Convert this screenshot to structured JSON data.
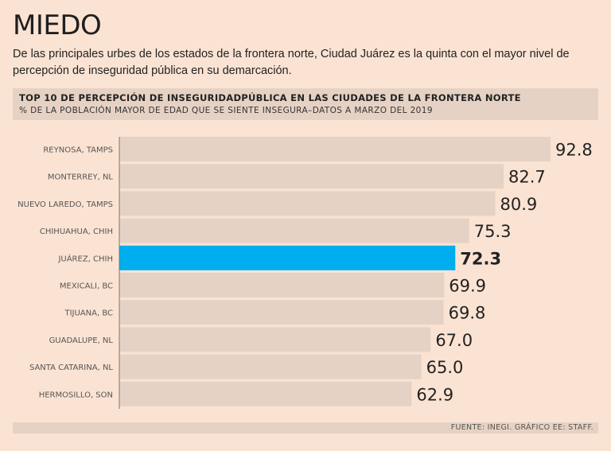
{
  "header": {
    "title": "MIEDO",
    "subtitle": "De las principales urbes de los estados de la frontera norte, Ciudad Juárez es la quinta con el mayor nivel de percepción de inseguridad pública en su demarcación."
  },
  "chart_data": {
    "type": "bar",
    "orientation": "horizontal",
    "title": "TOP 10 DE PERCEPCIÓN DE INSEGURIDADPÚBLICA EN LAS CIUDADES DE LA FRONTERA NORTE",
    "subtitle": "% DE LA POBLACIÓN MAYOR DE EDAD QUE SE SIENTE INSEGURA–DATOS A MARZO DEL 2019",
    "categories": [
      "REYNOSA, TAMPS",
      "MONTERREY, NL",
      "NUEVO LAREDO, TAMPS",
      "CHIHUAHUA, CHIH",
      "JUÁREZ, CHIH",
      "MEXICALI, BC",
      "TIJUANA, BC",
      "GUADALUPE, NL",
      "SANTA CATARINA, NL",
      "HERMOSILLO, SON"
    ],
    "values": [
      92.8,
      82.7,
      80.9,
      75.3,
      72.3,
      69.9,
      69.8,
      67.0,
      65.0,
      62.9
    ],
    "value_labels": [
      "92.8",
      "82.7",
      "80.9",
      "75.3",
      "72.3",
      "69.9",
      "69.8",
      "67.0",
      "65.0",
      "62.9"
    ],
    "highlight_index": 4,
    "xlim": [
      0,
      92.8
    ],
    "colors": {
      "bar": "#e6d2c4",
      "highlight": "#00aeef",
      "axis": "#777777",
      "label": "#555555",
      "value": "#222222"
    }
  },
  "footer": {
    "source": "FUENTE: INEGI. GRÁFICO EE: STAFF."
  }
}
